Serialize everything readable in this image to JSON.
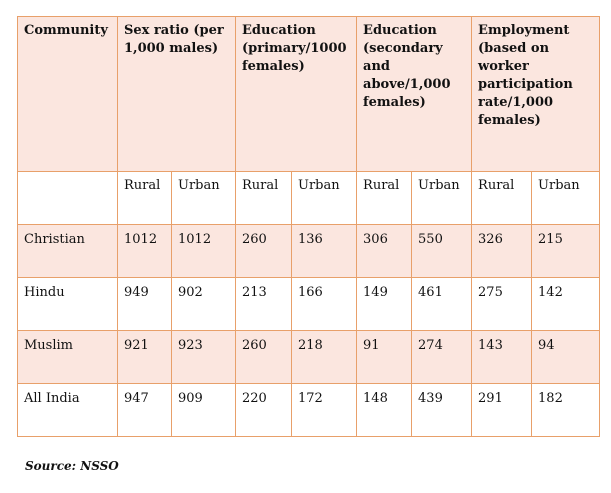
{
  "table": {
    "header_community": "Community",
    "groups": [
      "Sex ratio (per 1,000 males)",
      "Education (primary/1000 females)",
      "Education (secondary and above/1,000 females)",
      "Employment (based on worker participation rate/1,000 females)"
    ],
    "subheaders": [
      "Rural",
      "Urban",
      "Rural",
      "Urban",
      "Rural",
      "Urban",
      "Rural",
      "Urban"
    ],
    "rows": [
      {
        "community": "Christian",
        "values": [
          "1012",
          "1012",
          "260",
          "136",
          "306",
          "550",
          "326",
          "215"
        ]
      },
      {
        "community": "Hindu",
        "values": [
          "949",
          "902",
          "213",
          "166",
          "149",
          "461",
          "275",
          "142"
        ]
      },
      {
        "community": "Muslim",
        "values": [
          "921",
          "923",
          "260",
          "218",
          "91",
          "274",
          "143",
          "94"
        ]
      },
      {
        "community": "All India",
        "values": [
          "947",
          "909",
          "220",
          "172",
          "148",
          "439",
          "291",
          "182"
        ]
      }
    ]
  },
  "source": "Source: NSSO",
  "colors": {
    "border": "#e8a06a",
    "shade": "#fbe6df"
  }
}
